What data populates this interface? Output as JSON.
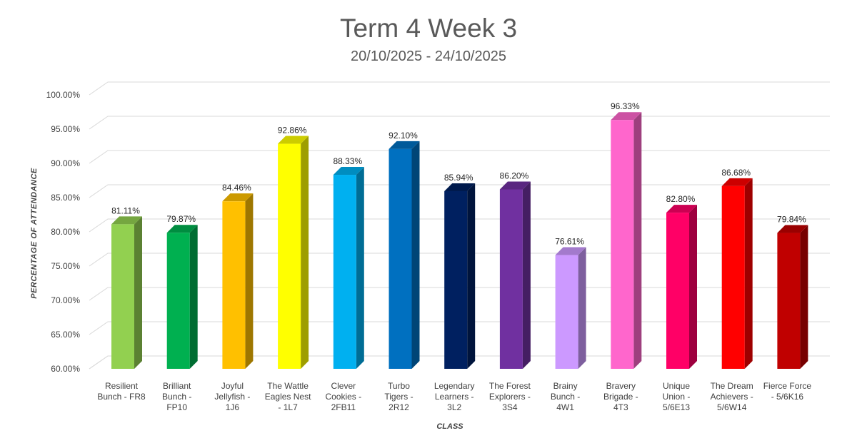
{
  "chart_data": {
    "type": "bar",
    "title": "Term 4 Week 3",
    "subtitle": "20/10/2025 - 24/10/2025",
    "xlabel": "CLASS",
    "ylabel": "PERCENTAGE OF ATTENDANCE",
    "ylim": [
      60,
      100
    ],
    "ytick_step": 5,
    "y_tick_labels": [
      "60.00%",
      "65.00%",
      "70.00%",
      "75.00%",
      "80.00%",
      "85.00%",
      "90.00%",
      "95.00%",
      "100.00%"
    ],
    "grid": true,
    "categories": [
      [
        "Resilient",
        "Bunch - FR8"
      ],
      [
        "Brilliant",
        "Bunch -",
        "FP10"
      ],
      [
        "Joyful",
        "Jellyfish -",
        "1J6"
      ],
      [
        "The Wattle",
        "Eagles Nest",
        "- 1L7"
      ],
      [
        "Clever",
        "Cookies -",
        "2FB11"
      ],
      [
        "Turbo",
        "Tigers -",
        "2R12"
      ],
      [
        "Legendary",
        "Learners -",
        "3L2"
      ],
      [
        "The Forest",
        "Explorers -",
        "3S4"
      ],
      [
        "Brainy",
        "Bunch -",
        "4W1"
      ],
      [
        "Bravery",
        "Brigade -",
        "4T3"
      ],
      [
        "Unique",
        "Union -",
        "5/6E13"
      ],
      [
        "The Dream",
        "Achievers -",
        "5/6W14"
      ],
      [
        "Fierce Force",
        "- 5/6K16"
      ]
    ],
    "values": [
      81.11,
      79.87,
      84.46,
      92.86,
      88.33,
      92.1,
      85.94,
      86.2,
      76.61,
      96.33,
      82.8,
      86.68,
      79.84
    ],
    "value_labels": [
      "81.11%",
      "79.87%",
      "84.46%",
      "92.86%",
      "88.33%",
      "92.10%",
      "85.94%",
      "86.20%",
      "76.61%",
      "96.33%",
      "82.80%",
      "86.68%",
      "79.84%"
    ],
    "colors": [
      "#92D050",
      "#00B050",
      "#FFC000",
      "#FFFF00",
      "#00B0F0",
      "#0070C0",
      "#002060",
      "#7030A0",
      "#CC99FF",
      "#FF66CC",
      "#FF0066",
      "#FF0000",
      "#C00000"
    ]
  }
}
